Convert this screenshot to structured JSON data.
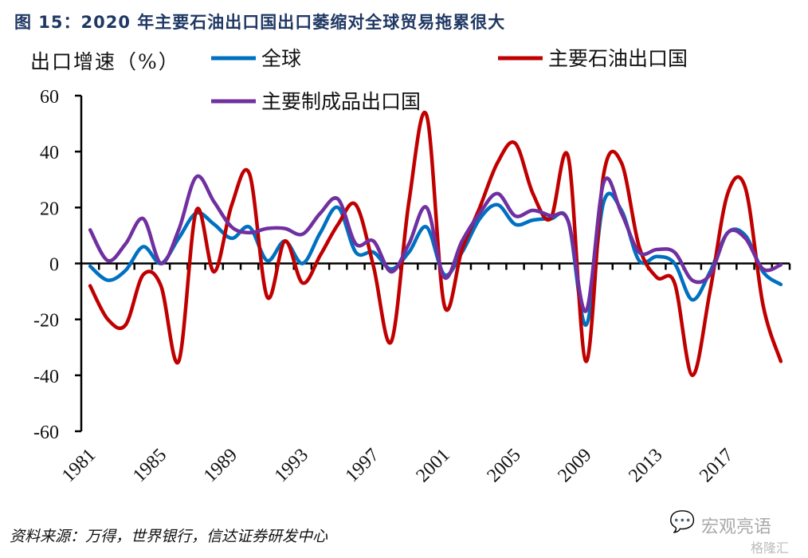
{
  "title": "图  15：2020 年主要石油出口国出口萎缩对全球贸易拖累很大",
  "source": "资料来源：万得，世界银行，信达证券研发中心",
  "watermark": {
    "primary": "宏观亮语",
    "secondary": "格隆汇",
    "icon": "wechat-icon"
  },
  "chart_data": {
    "type": "line",
    "title": "2020 年主要石油出口国出口萎缩对全球贸易拖累很大",
    "ylabel": "出口增速（%）",
    "xlabel": "",
    "ylim": [
      -60,
      60
    ],
    "yticks": [
      60,
      40,
      20,
      0,
      -20,
      -40,
      -60
    ],
    "x": [
      1981,
      1982,
      1983,
      1984,
      1985,
      1986,
      1987,
      1988,
      1989,
      1990,
      1991,
      1992,
      1993,
      1994,
      1995,
      1996,
      1997,
      1998,
      1999,
      2000,
      2001,
      2002,
      2003,
      2004,
      2005,
      2006,
      2007,
      2008,
      2009,
      2010,
      2011,
      2012,
      2013,
      2014,
      2015,
      2016,
      2017,
      2018,
      2019,
      2020
    ],
    "xtick_labels": [
      "1981",
      "1985",
      "1989",
      "1993",
      "1997",
      "2001",
      "2005",
      "2009",
      "2013",
      "2017"
    ],
    "grid": false,
    "legend_position": "top",
    "series": [
      {
        "name": "全球",
        "color": "#0070c0",
        "values": [
          -1,
          -6,
          -2.5,
          6,
          0,
          9,
          18,
          14,
          9,
          13,
          1,
          8,
          0,
          11,
          20,
          4,
          4,
          -2,
          4,
          13,
          -4,
          4,
          16,
          21,
          14,
          15.5,
          16,
          15,
          -22,
          22,
          19,
          1,
          2.5,
          0,
          -13,
          -3,
          11,
          10,
          -3,
          -7.5
        ]
      },
      {
        "name": "主要石油出口国",
        "color": "#c00000",
        "values": [
          -8,
          -20,
          -22,
          -4,
          -8,
          -35,
          19,
          -3,
          21,
          32,
          -12,
          8,
          -7,
          3,
          14,
          21,
          -1,
          -28,
          22,
          53,
          -15,
          5,
          20,
          36,
          43,
          25,
          16,
          38,
          -35,
          32,
          36,
          6,
          -5,
          -7,
          -40,
          -10,
          25,
          27,
          -15,
          -35
        ]
      },
      {
        "name": "主要制成品出口国",
        "color": "#7030a0",
        "values": [
          12,
          1,
          7,
          16,
          0,
          12,
          31,
          22,
          13,
          11,
          12.5,
          12.5,
          10.5,
          18,
          23,
          7,
          8,
          -3,
          7,
          20,
          -5,
          8,
          18,
          25,
          17,
          19,
          17,
          15,
          -17,
          29,
          18,
          4,
          5,
          4,
          -6,
          -4,
          11,
          9,
          -2,
          -0.5
        ]
      }
    ]
  }
}
